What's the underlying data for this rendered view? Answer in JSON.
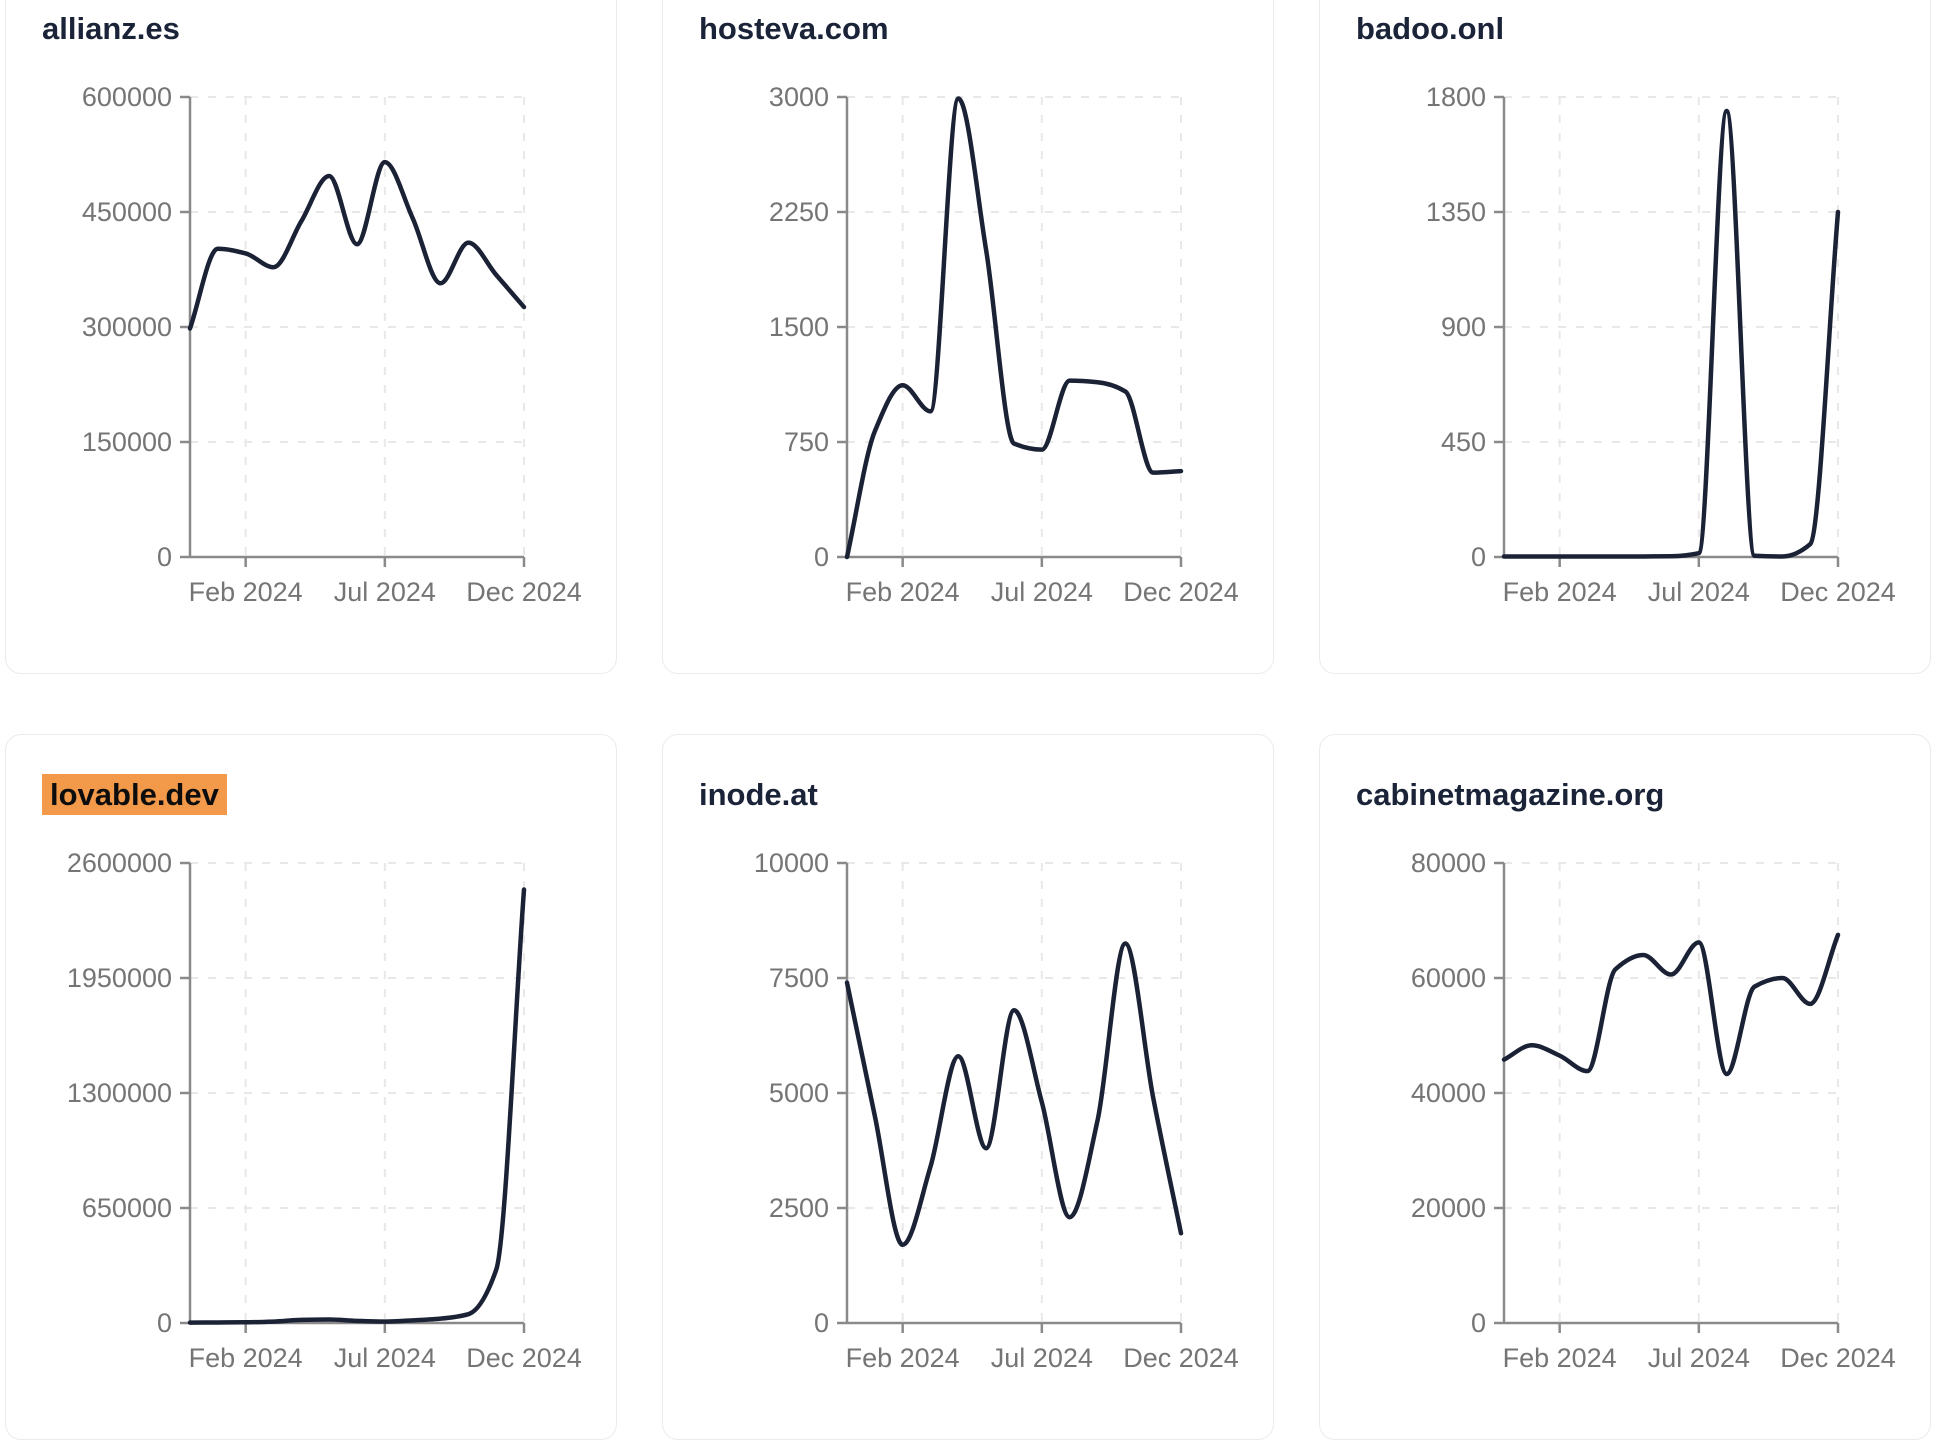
{
  "page": {
    "background": "#ffffff",
    "x_axis_range": "Dec 2023 to Dec 2024",
    "x_tick_labels": [
      "Feb 2024",
      "Jul 2024",
      "Dec 2024"
    ]
  },
  "colors": {
    "line": "#1b2235",
    "grid": "#e8e8e8",
    "axis": "#8a8a8a",
    "tick_label": "#757575",
    "title": "#1a2338",
    "card_border": "#e9ebf0",
    "highlight": "#f2994a",
    "highlight_text": "#0d0d0d"
  },
  "chart_data": [
    {
      "type": "line",
      "title": "allianz.es",
      "title_highlight": false,
      "x": [
        "Dec 2023",
        "Jan 2024",
        "Feb 2024",
        "Mar 2024",
        "Apr 2024",
        "May 2024",
        "Jun 2024",
        "Jul 2024",
        "Aug 2024",
        "Sep 2024",
        "Oct 2024",
        "Nov 2024",
        "Dec 2024"
      ],
      "values": [
        298000,
        402000,
        396000,
        378000,
        438000,
        497000,
        408000,
        515000,
        442000,
        357000,
        410000,
        368000,
        326000
      ],
      "y_ticks": [
        0,
        150000,
        300000,
        450000,
        600000
      ],
      "ylim": [
        0,
        600000
      ],
      "x_ticks": [
        {
          "index": 2,
          "label": "Feb 2024"
        },
        {
          "index": 7,
          "label": "Jul 2024"
        },
        {
          "index": 12,
          "label": "Dec 2024"
        }
      ],
      "grid": true,
      "legend": "none"
    },
    {
      "type": "line",
      "title": "hosteva.com",
      "title_highlight": false,
      "x": [
        "Dec 2023",
        "Jan 2024",
        "Feb 2024",
        "Mar 2024",
        "Apr 2024",
        "May 2024",
        "Jun 2024",
        "Jul 2024",
        "Aug 2024",
        "Sep 2024",
        "Oct 2024",
        "Nov 2024",
        "Dec 2024"
      ],
      "values": [
        0,
        820,
        1120,
        950,
        2990,
        2000,
        740,
        700,
        1150,
        1140,
        1080,
        550,
        560
      ],
      "y_ticks": [
        0,
        750,
        1500,
        2250,
        3000
      ],
      "ylim": [
        0,
        3000
      ],
      "x_ticks": [
        {
          "index": 2,
          "label": "Feb 2024"
        },
        {
          "index": 7,
          "label": "Jul 2024"
        },
        {
          "index": 12,
          "label": "Dec 2024"
        }
      ],
      "grid": true,
      "legend": "none"
    },
    {
      "type": "line",
      "title": "badoo.onl",
      "title_highlight": false,
      "x": [
        "Dec 2023",
        "Jan 2024",
        "Feb 2024",
        "Mar 2024",
        "Apr 2024",
        "May 2024",
        "Jun 2024",
        "Jul 2024",
        "Aug 2024",
        "Sep 2024",
        "Oct 2024",
        "Nov 2024",
        "Dec 2024"
      ],
      "values": [
        2,
        2,
        2,
        2,
        2,
        2,
        3,
        15,
        1745,
        5,
        2,
        50,
        1350
      ],
      "y_ticks": [
        0,
        450,
        900,
        1350,
        1800
      ],
      "ylim": [
        0,
        1800
      ],
      "x_ticks": [
        {
          "index": 2,
          "label": "Feb 2024"
        },
        {
          "index": 7,
          "label": "Jul 2024"
        },
        {
          "index": 12,
          "label": "Dec 2024"
        }
      ],
      "grid": true,
      "legend": "none"
    },
    {
      "type": "line",
      "title": "lovable.dev",
      "title_highlight": true,
      "x": [
        "Dec 2023",
        "Jan 2024",
        "Feb 2024",
        "Mar 2024",
        "Apr 2024",
        "May 2024",
        "Jun 2024",
        "Jul 2024",
        "Aug 2024",
        "Sep 2024",
        "Oct 2024",
        "Nov 2024",
        "Dec 2024"
      ],
      "values": [
        2000,
        3000,
        4000,
        8000,
        18000,
        20000,
        12000,
        8000,
        15000,
        25000,
        50000,
        300000,
        2450000
      ],
      "y_ticks": [
        0,
        650000,
        1300000,
        1950000,
        2600000
      ],
      "ylim": [
        0,
        2600000
      ],
      "x_ticks": [
        {
          "index": 2,
          "label": "Feb 2024"
        },
        {
          "index": 7,
          "label": "Jul 2024"
        },
        {
          "index": 12,
          "label": "Dec 2024"
        }
      ],
      "grid": true,
      "legend": "none"
    },
    {
      "type": "line",
      "title": "inode.at",
      "title_highlight": false,
      "x": [
        "Dec 2023",
        "Jan 2024",
        "Feb 2024",
        "Mar 2024",
        "Apr 2024",
        "May 2024",
        "Jun 2024",
        "Jul 2024",
        "Aug 2024",
        "Sep 2024",
        "Oct 2024",
        "Nov 2024",
        "Dec 2024"
      ],
      "values": [
        7400,
        4500,
        1700,
        3400,
        5800,
        3800,
        6800,
        4800,
        2300,
        4400,
        8250,
        4900,
        1950
      ],
      "y_ticks": [
        0,
        2500,
        5000,
        7500,
        10000
      ],
      "ylim": [
        0,
        10000
      ],
      "x_ticks": [
        {
          "index": 2,
          "label": "Feb 2024"
        },
        {
          "index": 7,
          "label": "Jul 2024"
        },
        {
          "index": 12,
          "label": "Dec 2024"
        }
      ],
      "grid": true,
      "legend": "none"
    },
    {
      "type": "line",
      "title": "cabinetmagazine.org",
      "title_highlight": false,
      "x": [
        "Dec 2023",
        "Jan 2024",
        "Feb 2024",
        "Mar 2024",
        "Apr 2024",
        "May 2024",
        "Jun 2024",
        "Jul 2024",
        "Aug 2024",
        "Sep 2024",
        "Oct 2024",
        "Nov 2024",
        "Dec 2024"
      ],
      "values": [
        45800,
        48300,
        46500,
        43800,
        61500,
        64000,
        60600,
        66200,
        43300,
        58500,
        60000,
        55500,
        67500
      ],
      "y_ticks": [
        0,
        20000,
        40000,
        60000,
        80000
      ],
      "ylim": [
        0,
        80000
      ],
      "x_ticks": [
        {
          "index": 2,
          "label": "Feb 2024"
        },
        {
          "index": 7,
          "label": "Jul 2024"
        },
        {
          "index": 12,
          "label": "Dec 2024"
        }
      ],
      "grid": true,
      "legend": "none"
    }
  ]
}
